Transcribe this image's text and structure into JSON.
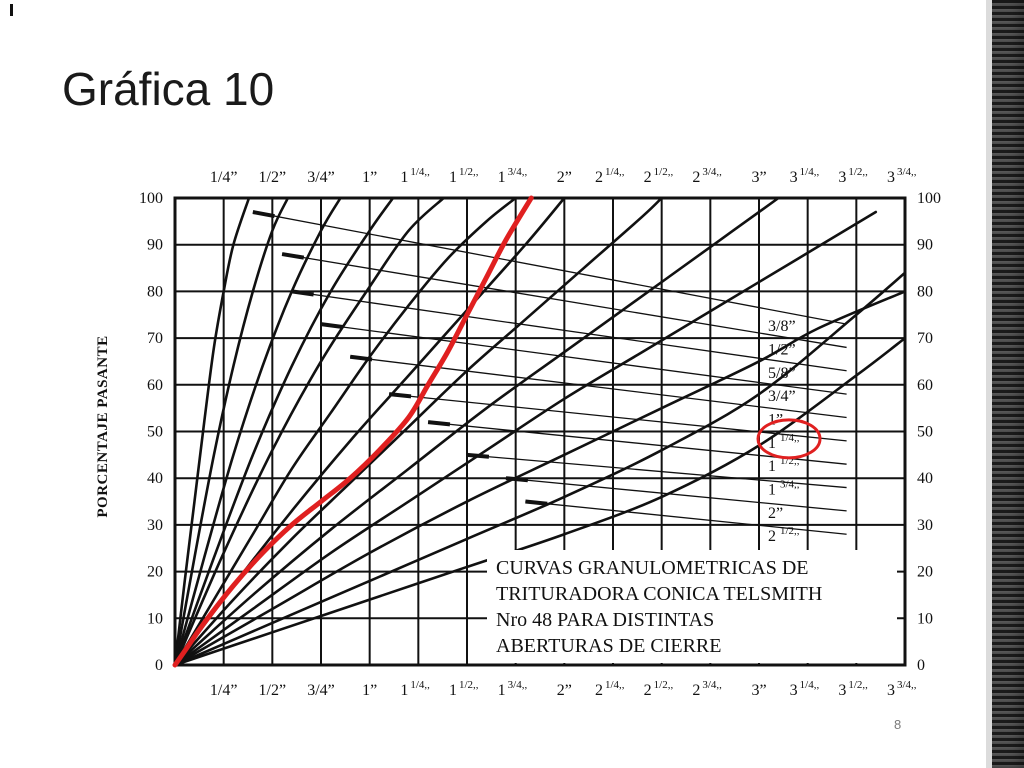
{
  "slide": {
    "corner_mark": "ı",
    "title": "Gráfica 10",
    "page_number": "8"
  },
  "chart_data": {
    "type": "line",
    "title": "",
    "ylabel": "PORCENTAJE PASANTE",
    "ylim": [
      0,
      100
    ],
    "xlim": [
      0,
      3.75
    ],
    "y_ticks": [
      0,
      10,
      20,
      30,
      40,
      50,
      60,
      70,
      80,
      90,
      100
    ],
    "x_tick_labels": [
      {
        "value": 0.25,
        "main": "1/4”",
        "sup": ""
      },
      {
        "value": 0.5,
        "main": "1/2”",
        "sup": ""
      },
      {
        "value": 0.75,
        "main": "3/4”",
        "sup": ""
      },
      {
        "value": 1.0,
        "main": "1”",
        "sup": ""
      },
      {
        "value": 1.25,
        "main": "1",
        "sup": "1/4,,"
      },
      {
        "value": 1.5,
        "main": "1",
        "sup": "1/2,,"
      },
      {
        "value": 1.75,
        "main": "1",
        "sup": "3/4,,"
      },
      {
        "value": 2.0,
        "main": "2”",
        "sup": ""
      },
      {
        "value": 2.25,
        "main": "2",
        "sup": "1/4,,"
      },
      {
        "value": 2.5,
        "main": "2",
        "sup": "1/2,,"
      },
      {
        "value": 2.75,
        "main": "2",
        "sup": "3/4,,"
      },
      {
        "value": 3.0,
        "main": "3”",
        "sup": ""
      },
      {
        "value": 3.25,
        "main": "3",
        "sup": "1/4,,"
      },
      {
        "value": 3.5,
        "main": "3",
        "sup": "1/2,,"
      },
      {
        "value": 3.75,
        "main": "3",
        "sup": "3/4,,"
      }
    ],
    "grid": true,
    "annotation": {
      "lines": [
        "CURVAS GRANULOMETRICAS DE",
        "TRITURADORA CONICA TELSMITH",
        "Nro 48 PARA DISTINTAS",
        "ABERTURAS DE CIERRE"
      ]
    },
    "highlight_color": "#e02020",
    "series": [
      {
        "name_main": "",
        "name_sup": "",
        "label_y": null,
        "highlight": false,
        "x": [
          0,
          0.05,
          0.1,
          0.15,
          0.2,
          0.25,
          0.3,
          0.38
        ],
        "y": [
          0,
          18,
          35,
          52,
          68,
          80,
          90,
          100
        ]
      },
      {
        "name_main": "",
        "name_sup": "",
        "label_y": null,
        "highlight": false,
        "x": [
          0,
          0.1,
          0.2,
          0.3,
          0.4,
          0.5,
          0.58
        ],
        "y": [
          0,
          23,
          45,
          64,
          80,
          93,
          100
        ]
      },
      {
        "name_main": "",
        "name_sup": "",
        "label_y": null,
        "highlight": false,
        "x": [
          0,
          0.15,
          0.3,
          0.45,
          0.6,
          0.75,
          0.85
        ],
        "y": [
          0,
          23,
          45,
          64,
          80,
          93,
          100
        ]
      },
      {
        "name_main": "3/8”",
        "name_sup": "",
        "label_y": 73,
        "highlight": false,
        "x": [
          0,
          0.2,
          0.4,
          0.6,
          0.8,
          1.0,
          1.12
        ],
        "y": [
          0,
          23,
          45,
          64,
          80,
          93,
          100
        ]
      },
      {
        "name_main": "1/2”",
        "name_sup": "",
        "label_y": 68,
        "highlight": false,
        "x": [
          0,
          0.25,
          0.5,
          0.75,
          1.0,
          1.2,
          1.38
        ],
        "y": [
          0,
          24,
          46,
          65,
          81,
          93,
          100
        ]
      },
      {
        "name_main": "5/8”",
        "name_sup": "",
        "label_y": 63,
        "highlight": false,
        "x": [
          0,
          0.2,
          0.4,
          0.6,
          0.8,
          1.0,
          1.2,
          1.4,
          1.6,
          1.75
        ],
        "y": [
          0,
          14,
          28,
          42,
          54,
          66,
          77,
          87,
          95,
          100
        ]
      },
      {
        "name_main": "3/4”",
        "name_sup": "",
        "label_y": 58,
        "highlight": false,
        "x": [
          0,
          0.3,
          0.6,
          0.9,
          1.2,
          1.5,
          1.8,
          2.0
        ],
        "y": [
          0,
          17,
          33,
          48,
          62,
          76,
          90,
          100
        ]
      },
      {
        "name_main": "1”",
        "name_sup": "",
        "label_y": 53,
        "highlight": false,
        "x": [
          0,
          0.3,
          0.6,
          0.9,
          1.2,
          1.5,
          1.8,
          2.1,
          2.4,
          2.5
        ],
        "y": [
          0,
          14,
          27,
          39,
          51,
          63,
          74,
          85,
          96,
          100
        ]
      },
      {
        "name_main": "1",
        "name_sup": "1/4,,",
        "label_y": 48,
        "highlight": false,
        "x": [
          0,
          0.4,
          0.8,
          1.2,
          1.6,
          2.0,
          2.4,
          2.8,
          3.1
        ],
        "y": [
          0,
          15,
          29,
          42,
          55,
          67,
          79,
          91,
          100
        ]
      },
      {
        "name_main": "1",
        "name_sup": "1/2,,",
        "label_y": 43,
        "highlight": false,
        "x": [
          0,
          0.4,
          0.8,
          1.2,
          1.6,
          2.0,
          2.4,
          2.8,
          3.2,
          3.6
        ],
        "y": [
          0,
          12,
          24,
          35,
          46,
          57,
          67,
          77,
          87,
          97
        ]
      },
      {
        "name_main": "1",
        "name_sup": "3/4,,",
        "label_y": 38,
        "highlight": false,
        "x": [
          0,
          0.5,
          1.0,
          1.5,
          2.0,
          2.5,
          3.0,
          3.3,
          3.75
        ],
        "y": [
          0,
          12,
          24,
          35,
          45,
          55,
          65,
          72,
          80
        ]
      },
      {
        "name_main": "2”",
        "name_sup": "",
        "label_y": 33,
        "highlight": false,
        "x": [
          0,
          0.5,
          1.0,
          1.5,
          2.0,
          2.5,
          3.0,
          3.5,
          3.75
        ],
        "y": [
          0,
          9,
          18,
          27,
          36,
          46,
          58,
          75,
          84
        ]
      },
      {
        "name_main": "2",
        "name_sup": "1/2,,",
        "label_y": 28,
        "highlight": false,
        "x": [
          0,
          0.5,
          1.0,
          1.5,
          2.0,
          2.5,
          3.0,
          3.5,
          3.75
        ],
        "y": [
          0,
          7,
          14,
          21,
          28,
          36,
          47,
          62,
          70
        ]
      },
      {
        "name_main": "",
        "name_sup": "",
        "label_y": null,
        "highlight": true,
        "x": [
          0,
          0.05,
          0.15,
          0.3,
          0.45,
          0.6,
          0.75,
          0.9,
          1.05,
          1.2,
          1.3,
          1.4,
          1.5,
          1.6,
          1.7,
          1.83
        ],
        "y": [
          0,
          3,
          9,
          17,
          24,
          30,
          35,
          40,
          46,
          53,
          60,
          67,
          75,
          83,
          91,
          100
        ]
      }
    ],
    "dashed_guides": [
      {
        "x1": 0.4,
        "y1": 97,
        "x2": 3.45,
        "y2": 73
      },
      {
        "x1": 0.55,
        "y1": 88,
        "x2": 3.45,
        "y2": 68
      },
      {
        "x1": 0.6,
        "y1": 80,
        "x2": 3.45,
        "y2": 63
      },
      {
        "x1": 0.75,
        "y1": 73,
        "x2": 3.45,
        "y2": 58
      },
      {
        "x1": 0.9,
        "y1": 66,
        "x2": 3.45,
        "y2": 53
      },
      {
        "x1": 1.1,
        "y1": 58,
        "x2": 3.45,
        "y2": 48
      },
      {
        "x1": 1.3,
        "y1": 52,
        "x2": 3.45,
        "y2": 43
      },
      {
        "x1": 1.5,
        "y1": 45,
        "x2": 3.45,
        "y2": 38
      },
      {
        "x1": 1.7,
        "y1": 40,
        "x2": 3.45,
        "y2": 33
      },
      {
        "x1": 1.8,
        "y1": 35,
        "x2": 3.45,
        "y2": 28
      }
    ],
    "circled_label": "1"
  }
}
